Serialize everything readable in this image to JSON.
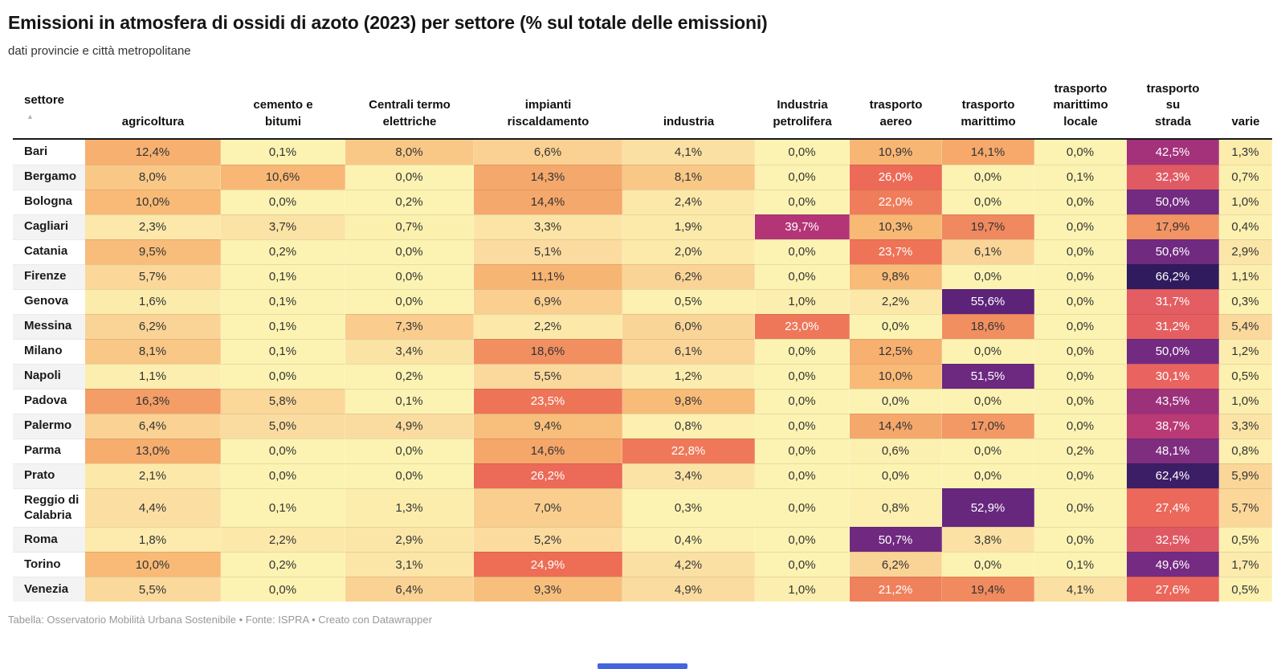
{
  "header": {
    "title": "Emissioni in atmosfera di ossidi di azoto (2023) per settore (% sul totale delle emissioni)",
    "subtitle": "dati provincie e città metropolitane"
  },
  "footer": {
    "text": "Tabella: Osservatorio Mobilità Urbana Sostenibile • Fonte: ISPRA • Creato con Datawrapper"
  },
  "chart_data": {
    "type": "heatmap",
    "title": "Emissioni in atmosfera di ossidi di azoto (2023) per settore (% sul totale delle emissioni)",
    "subtitle": "dati provincie e città metropolitane",
    "row_header": "settore",
    "sort_icon": "▲",
    "value_format": "percent, 1 decimal, comma as decimal separator",
    "legend_position": "none",
    "columns": [
      "agricoltura",
      "cemento e\nbitumi",
      "Centrali termo\nelettriche",
      "impianti\nriscaldamento",
      "industria",
      "Industria\npetrolifera",
      "trasporto\naereo",
      "trasporto\nmarittimo",
      "trasporto\nmarittimo\nlocale",
      "trasporto\nsu\nstrada",
      "varie"
    ],
    "rows": [
      {
        "label": "Bari",
        "values": [
          12.4,
          0.1,
          8.0,
          6.6,
          4.1,
          0.0,
          10.9,
          14.1,
          0.0,
          42.5,
          1.3
        ]
      },
      {
        "label": "Bergamo",
        "values": [
          8.0,
          10.6,
          0.0,
          14.3,
          8.1,
          0.0,
          26.0,
          0.0,
          0.1,
          32.3,
          0.7
        ]
      },
      {
        "label": "Bologna",
        "values": [
          10.0,
          0.0,
          0.2,
          14.4,
          2.4,
          0.0,
          22.0,
          0.0,
          0.0,
          50.0,
          1.0
        ]
      },
      {
        "label": "Cagliari",
        "values": [
          2.3,
          3.7,
          0.7,
          3.3,
          1.9,
          39.7,
          10.3,
          19.7,
          0.0,
          17.9,
          0.4
        ]
      },
      {
        "label": "Catania",
        "values": [
          9.5,
          0.2,
          0.0,
          5.1,
          2.0,
          0.0,
          23.7,
          6.1,
          0.0,
          50.6,
          2.9
        ]
      },
      {
        "label": "Firenze",
        "values": [
          5.7,
          0.1,
          0.0,
          11.1,
          6.2,
          0.0,
          9.8,
          0.0,
          0.0,
          66.2,
          1.1
        ]
      },
      {
        "label": "Genova",
        "values": [
          1.6,
          0.1,
          0.0,
          6.9,
          0.5,
          1.0,
          2.2,
          55.6,
          0.0,
          31.7,
          0.3
        ]
      },
      {
        "label": "Messina",
        "values": [
          6.2,
          0.1,
          7.3,
          2.2,
          6.0,
          23.0,
          0.0,
          18.6,
          0.0,
          31.2,
          5.4
        ]
      },
      {
        "label": "Milano",
        "values": [
          8.1,
          0.1,
          3.4,
          18.6,
          6.1,
          0.0,
          12.5,
          0.0,
          0.0,
          50.0,
          1.2
        ]
      },
      {
        "label": "Napoli",
        "values": [
          1.1,
          0.0,
          0.2,
          5.5,
          1.2,
          0.0,
          10.0,
          51.5,
          0.0,
          30.1,
          0.5
        ]
      },
      {
        "label": "Padova",
        "values": [
          16.3,
          5.8,
          0.1,
          23.5,
          9.8,
          0.0,
          0.0,
          0.0,
          0.0,
          43.5,
          1.0
        ]
      },
      {
        "label": "Palermo",
        "values": [
          6.4,
          5.0,
          4.9,
          9.4,
          0.8,
          0.0,
          14.4,
          17.0,
          0.0,
          38.7,
          3.3
        ]
      },
      {
        "label": "Parma",
        "values": [
          13.0,
          0.0,
          0.0,
          14.6,
          22.8,
          0.0,
          0.6,
          0.0,
          0.2,
          48.1,
          0.8
        ]
      },
      {
        "label": "Prato",
        "values": [
          2.1,
          0.0,
          0.0,
          26.2,
          3.4,
          0.0,
          0.0,
          0.0,
          0.0,
          62.4,
          5.9
        ]
      },
      {
        "label": "Reggio di Calabria",
        "values": [
          4.4,
          0.1,
          1.3,
          7.0,
          0.3,
          0.0,
          0.8,
          52.9,
          0.0,
          27.4,
          5.7
        ]
      },
      {
        "label": "Roma",
        "values": [
          1.8,
          2.2,
          2.9,
          5.2,
          0.4,
          0.0,
          50.7,
          3.8,
          0.0,
          32.5,
          0.5
        ]
      },
      {
        "label": "Torino",
        "values": [
          10.0,
          0.2,
          3.1,
          24.9,
          4.2,
          0.0,
          6.2,
          0.0,
          0.1,
          49.6,
          1.7
        ]
      },
      {
        "label": "Venezia",
        "values": [
          5.5,
          0.0,
          6.4,
          9.3,
          4.9,
          1.0,
          21.2,
          19.4,
          4.1,
          27.6,
          0.5
        ]
      }
    ],
    "color_scale": {
      "type": "linear",
      "stops": [
        [
          0,
          "#FCF3B2"
        ],
        [
          5,
          "#FBDCA0"
        ],
        [
          10,
          "#F8BA76"
        ],
        [
          15,
          "#F5A569"
        ],
        [
          20,
          "#F0875E"
        ],
        [
          25,
          "#ED6C55"
        ],
        [
          30,
          "#E96360"
        ],
        [
          32,
          "#E25C62"
        ],
        [
          36,
          "#C84570"
        ],
        [
          40,
          "#B23478"
        ],
        [
          45,
          "#93307C"
        ],
        [
          50,
          "#722B81"
        ],
        [
          56,
          "#5A2278"
        ],
        [
          62,
          "#3D1E67"
        ],
        [
          68,
          "#2B1A5A"
        ]
      ],
      "white_text_min_value": 20
    }
  }
}
